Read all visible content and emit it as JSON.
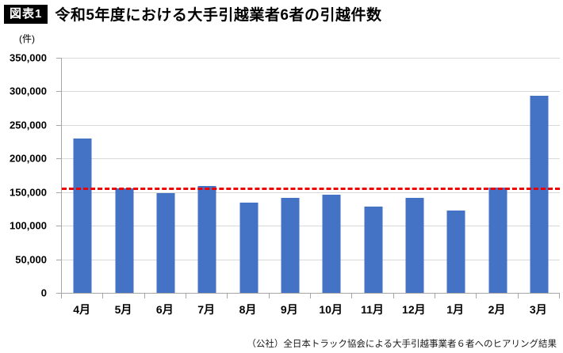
{
  "header": {
    "badge": "図表1",
    "title": "令和5年度における大手引越業者6者の引越件数"
  },
  "unit_label": "(件)",
  "footer": "（公社）全日本トラック協会による大手引越事業者６者へのヒアリング結果",
  "colors": {
    "bar": "#4472c4",
    "reference_line": "#ee0000",
    "gridline": "#d9d9d9",
    "axis": "#a6a6a6"
  },
  "chart_data": {
    "type": "bar",
    "title": "令和5年度における大手引越業者6者の引越件数",
    "ylabel": "(件)",
    "xlabel": "",
    "categories": [
      "4月",
      "5月",
      "6月",
      "7月",
      "8月",
      "9月",
      "10月",
      "11月",
      "12月",
      "1月",
      "2月",
      "3月"
    ],
    "values": [
      230000,
      156000,
      148000,
      159000,
      134000,
      141000,
      146000,
      129000,
      141000,
      123000,
      157000,
      294000
    ],
    "ylim": [
      0,
      350000
    ],
    "y_tick_step": 50000,
    "y_tick_labels": [
      "0",
      "50,000",
      "100,000",
      "150,000",
      "200,000",
      "250,000",
      "300,000",
      "350,000"
    ],
    "grid": true,
    "legend": false,
    "reference_line": {
      "value": 154000,
      "style": "dashed",
      "color": "#ee0000"
    }
  }
}
